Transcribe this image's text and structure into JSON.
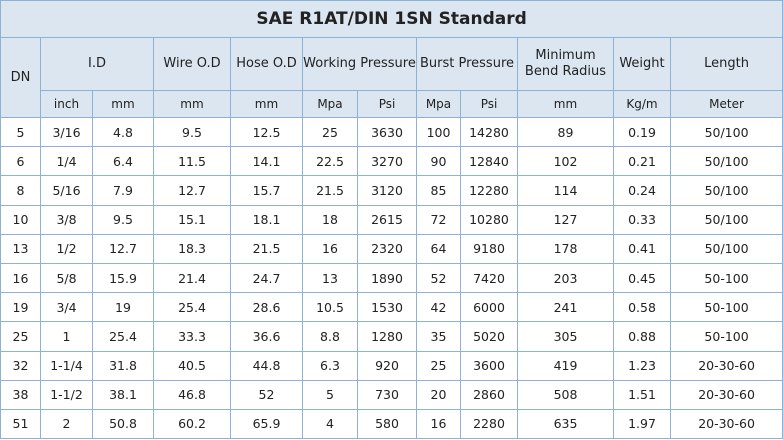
{
  "title": "SAE R1AT/DIN 1SN Standard",
  "header": {
    "dn": "DN",
    "id": "I.D",
    "wire": "Wire O.D",
    "hose": "Hose O.D",
    "working": "Working Pressure",
    "burst": "Burst Pressure",
    "bend": "Minimum Bend Radius",
    "weight": "Weight",
    "length": "Length"
  },
  "units": [
    "inch",
    "mm",
    "mm",
    "mm",
    "Mpa",
    "Psi",
    "Mpa",
    "Psi",
    "mm",
    "Kg/m",
    "Meter"
  ],
  "rows": [
    [
      "5",
      "3/16",
      "4.8",
      "9.5",
      "12.5",
      "25",
      "3630",
      "100",
      "14280",
      "89",
      "0.19",
      "50/100"
    ],
    [
      "6",
      "1/4",
      "6.4",
      "11.5",
      "14.1",
      "22.5",
      "3270",
      "90",
      "12840",
      "102",
      "0.21",
      "50/100"
    ],
    [
      "8",
      "5/16",
      "7.9",
      "12.7",
      "15.7",
      "21.5",
      "3120",
      "85",
      "12280",
      "114",
      "0.24",
      "50/100"
    ],
    [
      "10",
      "3/8",
      "9.5",
      "15.1",
      "18.1",
      "18",
      "2615",
      "72",
      "10280",
      "127",
      "0.33",
      "50/100"
    ],
    [
      "13",
      "1/2",
      "12.7",
      "18.3",
      "21.5",
      "16",
      "2320",
      "64",
      "9180",
      "178",
      "0.41",
      "50/100"
    ],
    [
      "16",
      "5/8",
      "15.9",
      "21.4",
      "24.7",
      "13",
      "1890",
      "52",
      "7420",
      "203",
      "0.45",
      "50-100"
    ],
    [
      "19",
      "3/4",
      "19",
      "25.4",
      "28.6",
      "10.5",
      "1530",
      "42",
      "6000",
      "241",
      "0.58",
      "50-100"
    ],
    [
      "25",
      "1",
      "25.4",
      "33.3",
      "36.6",
      "8.8",
      "1280",
      "35",
      "5020",
      "305",
      "0.88",
      "50-100"
    ],
    [
      "32",
      "1-1/4",
      "31.8",
      "40.5",
      "44.8",
      "6.3",
      "920",
      "25",
      "3600",
      "419",
      "1.23",
      "20-30-60"
    ],
    [
      "38",
      "1-1/2",
      "38.1",
      "46.8",
      "52",
      "5",
      "730",
      "20",
      "2860",
      "508",
      "1.51",
      "20-30-60"
    ],
    [
      "51",
      "2",
      "50.8",
      "60.2",
      "65.9",
      "4",
      "580",
      "16",
      "2280",
      "635",
      "1.97",
      "20-30-60"
    ]
  ]
}
